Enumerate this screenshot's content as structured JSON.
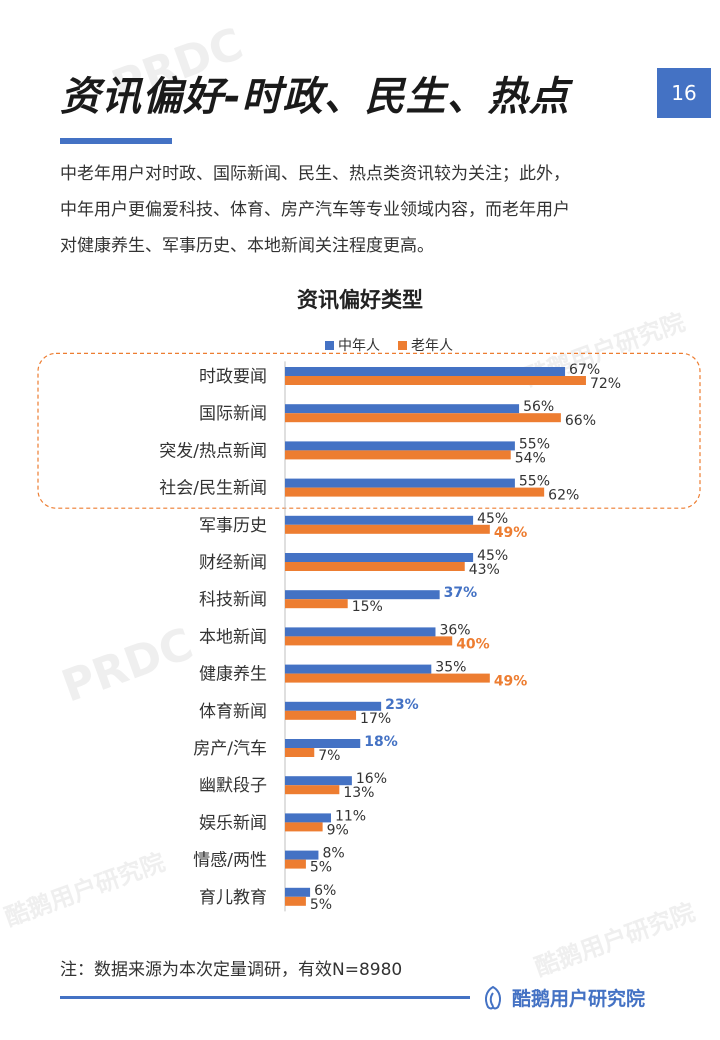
{
  "page": {
    "title": "资讯偏好-时政、民生、热点",
    "number": "16",
    "summary": [
      "中老年用户对时政、国际新闻、民生、热点类资讯较为关注；此外，",
      "中年用户更偏爱科技、体育、房产汽车等专业领域内容，而老年用户",
      "对健康养生、军事历史、本地新闻关注程度更高。"
    ],
    "footnote": "注：数据来源为本次定量调研，有效N=8980",
    "brand": "酷鹅用户研究院",
    "watermarks": [
      "PRDC",
      "酷鹅用户研究院"
    ]
  },
  "colors": {
    "accent": "#4472c4",
    "middle_aged": "#4472c4",
    "elderly": "#ed7d31",
    "highlight_box": "#ed7d31"
  },
  "chart_data": {
    "type": "bar",
    "orientation": "horizontal",
    "title": "资讯偏好类型",
    "legend_position": "top",
    "categories": [
      "时政要闻",
      "国际新闻",
      "突发/热点新闻",
      "社会/民生新闻",
      "军事历史",
      "财经新闻",
      "科技新闻",
      "本地新闻",
      "健康养生",
      "体育新闻",
      "房产/汽车",
      "幽默段子",
      "娱乐新闻",
      "情感/两性",
      "育儿教育"
    ],
    "series": [
      {
        "name": "中年人",
        "values": [
          67,
          56,
          55,
          55,
          45,
          45,
          37,
          36,
          35,
          23,
          18,
          16,
          11,
          8,
          6
        ],
        "labels": [
          "67%",
          "56%",
          "55%",
          "55%",
          "45%",
          "45%",
          "37%",
          "36%",
          "35%",
          "23%",
          "18%",
          "16%",
          "11%",
          "8%",
          "6%"
        ],
        "emphasized": [
          false,
          false,
          false,
          false,
          false,
          false,
          true,
          false,
          false,
          true,
          true,
          false,
          false,
          false,
          false
        ]
      },
      {
        "name": "老年人",
        "values": [
          72,
          66,
          54,
          62,
          49,
          43,
          15,
          40,
          49,
          17,
          7,
          13,
          9,
          5,
          5
        ],
        "labels": [
          "72%",
          "66%",
          "54%",
          "62%",
          "49%",
          "43%",
          "15%",
          "40%",
          "49%",
          "17%",
          "7%",
          "13%",
          "9%",
          "5%",
          "5%"
        ],
        "emphasized": [
          false,
          false,
          false,
          false,
          true,
          false,
          false,
          true,
          true,
          false,
          false,
          false,
          false,
          false,
          false
        ]
      }
    ],
    "xlim": [
      0,
      100
    ],
    "grid": false,
    "highlight_group": [
      "时政要闻",
      "国际新闻",
      "突发/热点新闻",
      "社会/民生新闻"
    ]
  }
}
